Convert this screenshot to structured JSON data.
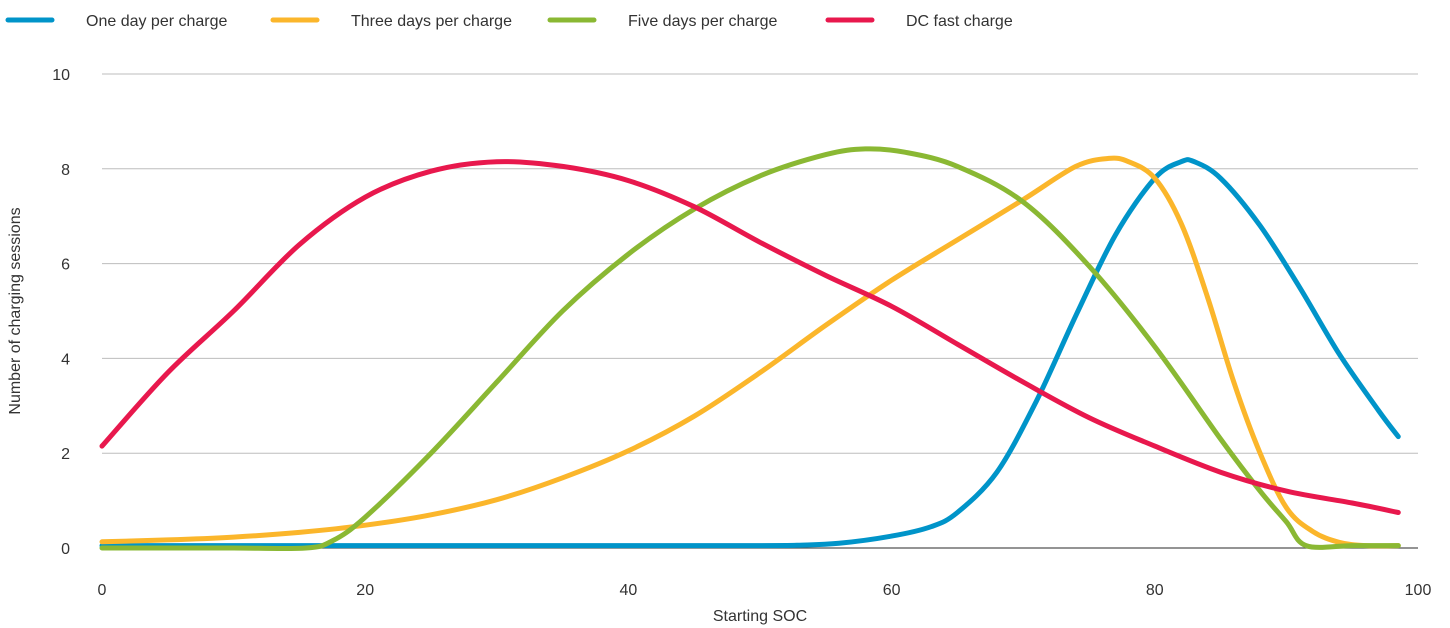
{
  "chart_data": {
    "type": "line",
    "title": "",
    "xlabel": "Starting SOC",
    "ylabel": "Number of charging sessions",
    "xlim": [
      0,
      100
    ],
    "ylim": [
      0,
      10
    ],
    "xticks": [
      0,
      20,
      40,
      60,
      80,
      100
    ],
    "yticks": [
      0,
      2,
      4,
      6,
      8,
      10
    ],
    "grid": true,
    "legend_position": "top",
    "series": [
      {
        "name": "One day per charge",
        "color": "#0094c9",
        "x": [
          0,
          10,
          20,
          30,
          40,
          50,
          53,
          56,
          60,
          63,
          65,
          68,
          71,
          74,
          77,
          80,
          82,
          83,
          85,
          88,
          91,
          94,
          97,
          98.5
        ],
        "y": [
          0.05,
          0.05,
          0.05,
          0.05,
          0.05,
          0.05,
          0.06,
          0.1,
          0.25,
          0.45,
          0.75,
          1.6,
          3.1,
          4.9,
          6.6,
          7.8,
          8.15,
          8.15,
          7.8,
          6.8,
          5.5,
          4.1,
          2.9,
          2.35
        ]
      },
      {
        "name": "Three days per charge",
        "color": "#fbb62b",
        "x": [
          0,
          5,
          10,
          15,
          20,
          25,
          30,
          35,
          40,
          45,
          50,
          55,
          60,
          65,
          70,
          74,
          76.5,
          78,
          80,
          82,
          84,
          86,
          88,
          90,
          92,
          94,
          96,
          98.5
        ],
        "y": [
          0.13,
          0.17,
          0.23,
          0.33,
          0.48,
          0.7,
          1.02,
          1.48,
          2.05,
          2.78,
          3.7,
          4.7,
          5.65,
          6.5,
          7.35,
          8.05,
          8.22,
          8.15,
          7.8,
          6.85,
          5.3,
          3.5,
          2.0,
          0.85,
          0.35,
          0.12,
          0.05,
          0.05
        ]
      },
      {
        "name": "Five days per charge",
        "color": "#8ab833",
        "x": [
          0,
          5,
          10,
          15.5,
          17.5,
          20,
          25,
          30,
          35,
          40,
          45,
          50,
          55,
          58,
          61,
          65,
          70,
          75,
          80,
          85,
          88,
          90,
          91.5,
          95,
          98.5
        ],
        "y": [
          0,
          0,
          0,
          0,
          0.15,
          0.65,
          2.0,
          3.5,
          5.0,
          6.2,
          7.15,
          7.85,
          8.3,
          8.42,
          8.35,
          8.05,
          7.3,
          5.95,
          4.25,
          2.3,
          1.2,
          0.55,
          0.05,
          0.05,
          0.05
        ]
      },
      {
        "name": "DC fast charge",
        "color": "#e8184d",
        "x": [
          0,
          5,
          10,
          15,
          20,
          25,
          30,
          35,
          40,
          45,
          50,
          55,
          60,
          65,
          70,
          75,
          80,
          85,
          90,
          95,
          98.5
        ],
        "y": [
          2.15,
          3.7,
          5.0,
          6.4,
          7.4,
          7.95,
          8.15,
          8.05,
          7.75,
          7.2,
          6.45,
          5.75,
          5.1,
          4.3,
          3.5,
          2.75,
          2.15,
          1.6,
          1.2,
          0.95,
          0.75
        ]
      }
    ]
  }
}
